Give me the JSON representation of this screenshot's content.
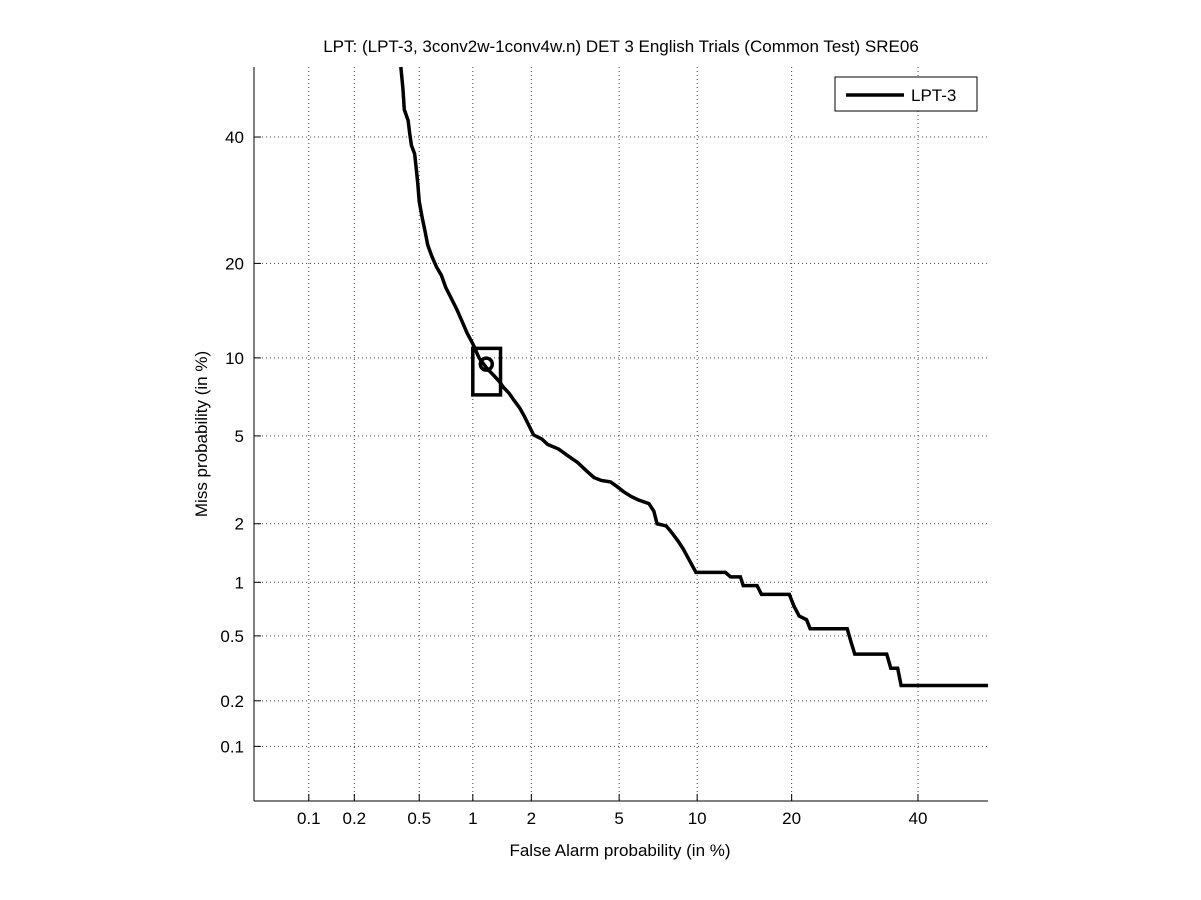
{
  "chart_data": {
    "type": "line",
    "scale": "normal-deviate (DET)",
    "title": "LPT: (LPT-3, 3conv2w-1conv4w.n) DET 3 English Trials (Common Test) SRE06",
    "xlabel": "False Alarm probability (in %)",
    "ylabel": "Miss probability (in %)",
    "xlim": [
      0.0411,
      52.9
    ],
    "ylim": [
      0.0412,
      52.9
    ],
    "xticks": [
      0.1,
      0.2,
      0.5,
      1,
      2,
      5,
      10,
      20,
      40
    ],
    "xtick_labels": [
      "0.1",
      "0.2",
      "0.5",
      "1",
      "2",
      "5",
      "10",
      "20",
      "40"
    ],
    "yticks": [
      0.1,
      0.2,
      0.5,
      1,
      2,
      5,
      10,
      20,
      40
    ],
    "ytick_labels": [
      "0.1",
      "0.2",
      "0.5",
      "1",
      "2",
      "5",
      "10",
      "20",
      "40"
    ],
    "grid": true,
    "legend_position": "top-right",
    "series": [
      {
        "name": "LPT-3",
        "color": "#000000",
        "points": [
          [
            0.389,
            52.9
          ],
          [
            0.4,
            49.0
          ],
          [
            0.408,
            45.0
          ],
          [
            0.43,
            43.0
          ],
          [
            0.44,
            40.5
          ],
          [
            0.45,
            38.5
          ],
          [
            0.47,
            37.0
          ],
          [
            0.48,
            34.5
          ],
          [
            0.49,
            32.0
          ],
          [
            0.5,
            29.0
          ],
          [
            0.52,
            26.5
          ],
          [
            0.54,
            24.5
          ],
          [
            0.56,
            22.5
          ],
          [
            0.59,
            21.0
          ],
          [
            0.63,
            19.5
          ],
          [
            0.67,
            18.5
          ],
          [
            0.71,
            17.0
          ],
          [
            0.76,
            15.8
          ],
          [
            0.82,
            14.5
          ],
          [
            0.88,
            13.2
          ],
          [
            0.93,
            12.2
          ],
          [
            1.0,
            11.2
          ],
          [
            1.08,
            10.0
          ],
          [
            1.13,
            9.6
          ],
          [
            1.17,
            9.3
          ],
          [
            1.22,
            9.0
          ],
          [
            1.3,
            8.6
          ],
          [
            1.38,
            8.2
          ],
          [
            1.45,
            7.8
          ],
          [
            1.55,
            7.4
          ],
          [
            1.63,
            7.0
          ],
          [
            1.75,
            6.5
          ],
          [
            1.85,
            6.0
          ],
          [
            1.95,
            5.5
          ],
          [
            2.05,
            5.05
          ],
          [
            2.25,
            4.85
          ],
          [
            2.4,
            4.6
          ],
          [
            2.7,
            4.4
          ],
          [
            3.0,
            4.1
          ],
          [
            3.3,
            3.85
          ],
          [
            3.6,
            3.55
          ],
          [
            3.9,
            3.3
          ],
          [
            4.2,
            3.2
          ],
          [
            4.6,
            3.15
          ],
          [
            4.9,
            3.0
          ],
          [
            5.2,
            2.85
          ],
          [
            5.6,
            2.7
          ],
          [
            6.0,
            2.6
          ],
          [
            6.6,
            2.5
          ],
          [
            6.9,
            2.3
          ],
          [
            7.1,
            2.0
          ],
          [
            7.7,
            1.95
          ],
          [
            8.1,
            1.8
          ],
          [
            8.5,
            1.65
          ],
          [
            8.9,
            1.5
          ],
          [
            9.4,
            1.3
          ],
          [
            9.9,
            1.13
          ],
          [
            12.5,
            1.13
          ],
          [
            13.0,
            1.07
          ],
          [
            14.0,
            1.07
          ],
          [
            14.3,
            0.96
          ],
          [
            15.8,
            0.96
          ],
          [
            16.3,
            0.86
          ],
          [
            19.7,
            0.86
          ],
          [
            20.3,
            0.74
          ],
          [
            21.0,
            0.65
          ],
          [
            22.0,
            0.62
          ],
          [
            22.5,
            0.55
          ],
          [
            28.0,
            0.55
          ],
          [
            28.6,
            0.46
          ],
          [
            29.2,
            0.39
          ],
          [
            34.5,
            0.39
          ],
          [
            35.2,
            0.32
          ],
          [
            36.4,
            0.32
          ],
          [
            37.0,
            0.25
          ],
          [
            52.9,
            0.25
          ]
        ]
      }
    ],
    "highlight_point": {
      "x": 1.18,
      "y": 9.5,
      "marker": "circle"
    },
    "highlight_box": {
      "x": [
        1.0,
        1.4
      ],
      "y": [
        7.3,
        10.8
      ],
      "marker": "square"
    }
  }
}
